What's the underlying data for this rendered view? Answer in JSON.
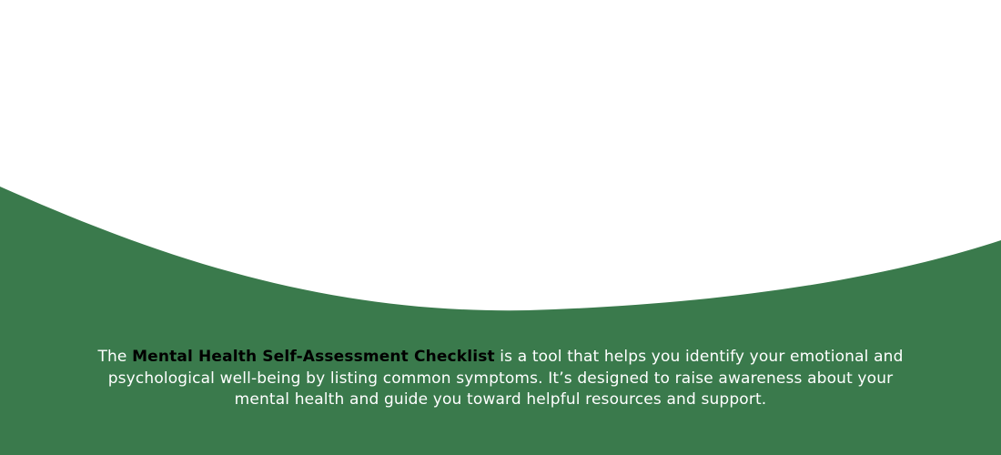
{
  "colors": {
    "background": "#ffffff",
    "wave": "#3a7a4c",
    "text": "#ffffff",
    "highlight": "#000000"
  },
  "description": {
    "prefix": "The ",
    "highlight": "Mental Health Self-Assessment Checklist",
    "suffix": " is a tool that helps you identify your emotional and psychological well-being by listing common symptoms. It’s designed to raise awareness about your mental health and guide you toward helpful resources and support."
  }
}
